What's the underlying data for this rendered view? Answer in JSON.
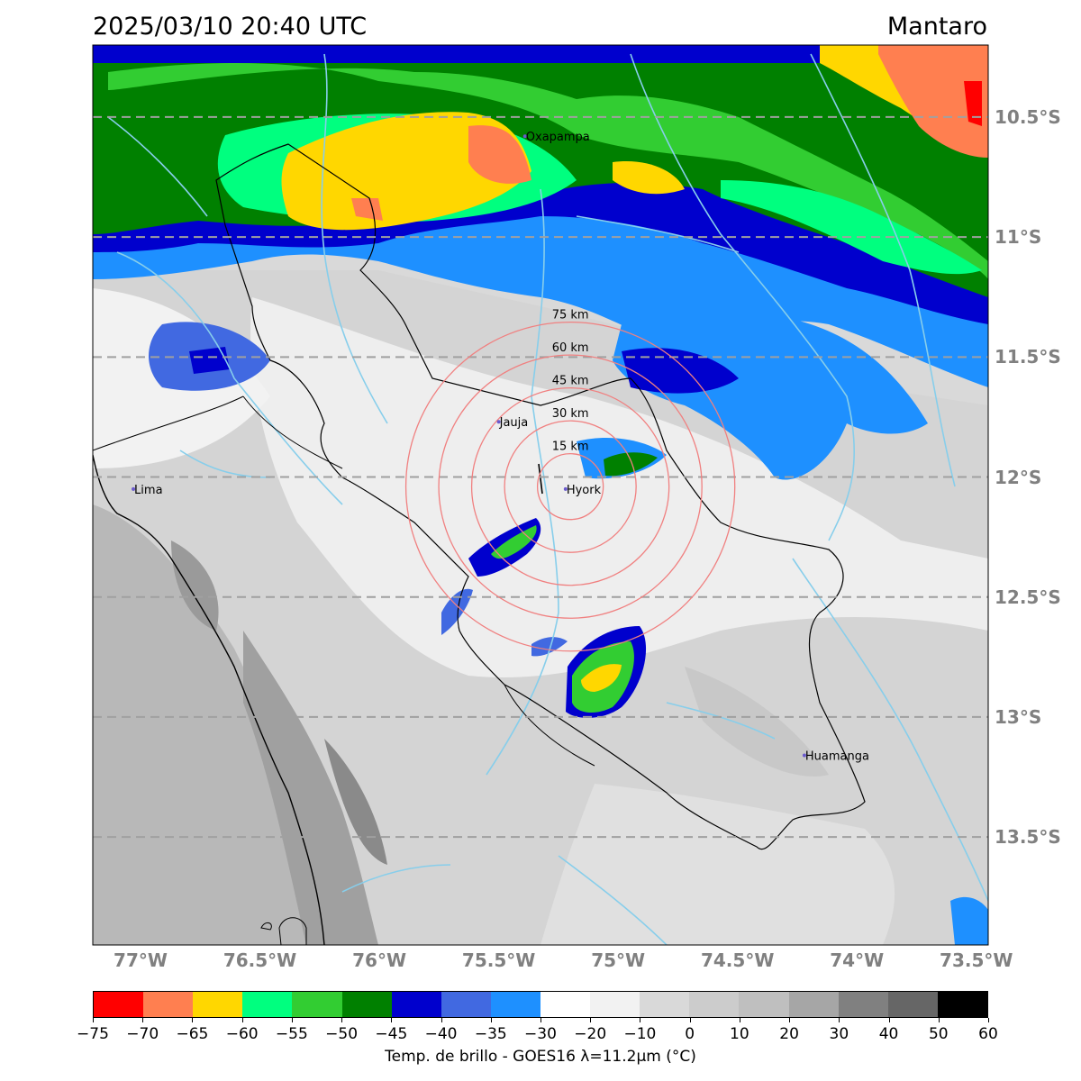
{
  "header": {
    "datetime": "2025/03/10 20:40 UTC",
    "region": "Mantaro"
  },
  "map": {
    "lon_ticks": [
      "77°W",
      "76.5°W",
      "76°W",
      "75.5°W",
      "75°W",
      "74.5°W",
      "74°W",
      "73.5°W"
    ],
    "lat_ticks": [
      "10.5°S",
      "11°S",
      "11.5°S",
      "12°S",
      "12.5°S",
      "13°S",
      "13.5°S"
    ],
    "lon_values": [
      -77,
      -76.5,
      -76,
      -75.5,
      -75,
      -74.5,
      -74,
      -73.5
    ],
    "lat_values": [
      -10.5,
      -11,
      -11.5,
      -12,
      -12.5,
      -13,
      -13.5
    ],
    "extent": {
      "lon_min": -77.2,
      "lon_max": -73.45,
      "lat_min": -13.95,
      "lat_max": -10.2
    },
    "radar_center": {
      "lon": -75.2,
      "lat": -12.04
    },
    "ring_labels": [
      "15 km",
      "30 km",
      "45 km",
      "60 km",
      "75 km"
    ],
    "ring_radii_km": [
      15,
      30,
      45,
      60,
      75
    ],
    "cities": [
      {
        "name": "Oxapampa",
        "lon": -75.39,
        "lat": -10.58
      },
      {
        "name": "Jauja",
        "lon": -75.5,
        "lat": -11.77
      },
      {
        "name": "Hyork",
        "lon": -75.22,
        "lat": -12.05
      },
      {
        "name": "Lima",
        "lon": -77.03,
        "lat": -12.05
      },
      {
        "name": "Huamanga",
        "lon": -74.22,
        "lat": -13.16
      }
    ],
    "colors": {
      "grid": "#a0a0a0",
      "ring": "#f08080",
      "river": "#87ceeb",
      "border": "#000000"
    }
  },
  "colorbar": {
    "label": "Temp. de brillo - GOES16 λ=11.2μm (°C)",
    "ticks": [
      "−75",
      "−70",
      "−65",
      "−60",
      "−55",
      "−50",
      "−45",
      "−40",
      "−35",
      "−30",
      "−20",
      "−10",
      "0",
      "10",
      "20",
      "30",
      "40",
      "50",
      "60"
    ],
    "colors": [
      "#ff0000",
      "#ff7f50",
      "#ffd700",
      "#00ff7f",
      "#32cd32",
      "#008000",
      "#0000cd",
      "#4169e1",
      "#1e90ff",
      "#ffffff",
      "#f2f2f2",
      "#d9d9d9",
      "#cccccc",
      "#bfbfbf",
      "#a6a6a6",
      "#808080",
      "#666666",
      "#000000"
    ]
  }
}
